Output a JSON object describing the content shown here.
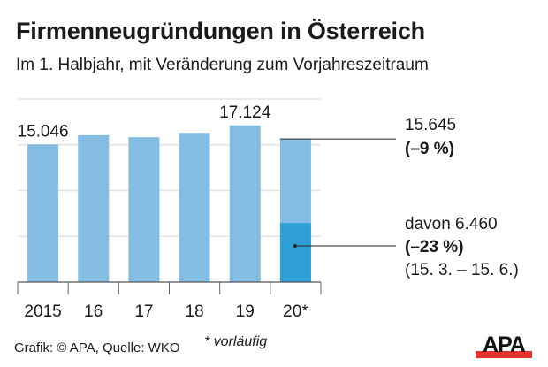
{
  "chart_data": {
    "type": "bar",
    "title": "Firmenneugründungen in Österreich",
    "subtitle": "Im 1. Halbjahr, mit Veränderung zum Vorjahreszeitraum",
    "categories": [
      "2015",
      "16",
      "17",
      "18",
      "19",
      "20*"
    ],
    "values": [
      15046,
      16050,
      15830,
      16310,
      17124,
      15645
    ],
    "data_labels": {
      "0": "15.046",
      "4": "17.124"
    },
    "sub_value": {
      "category": "20*",
      "value": 6460
    },
    "annotations": {
      "total_value": "15.645",
      "total_change": "(–9 %)",
      "sub_value": "davon 6.460",
      "sub_change": "(–23 %)",
      "sub_period": "(15. 3. – 15. 6.)"
    },
    "ylim": [
      0,
      20000
    ],
    "ygrid": [
      0,
      5000,
      10000,
      15000,
      20000
    ],
    "grid": true,
    "xlabel": "",
    "ylabel": "",
    "colors": {
      "bar": "#84bde3",
      "sub_bar": "#2f9fd8",
      "grid": "#e3e3e3"
    }
  },
  "footer": {
    "source": "Grafik: © APA, Quelle: WKO",
    "note": "* vorläufig",
    "logo": "APA"
  }
}
